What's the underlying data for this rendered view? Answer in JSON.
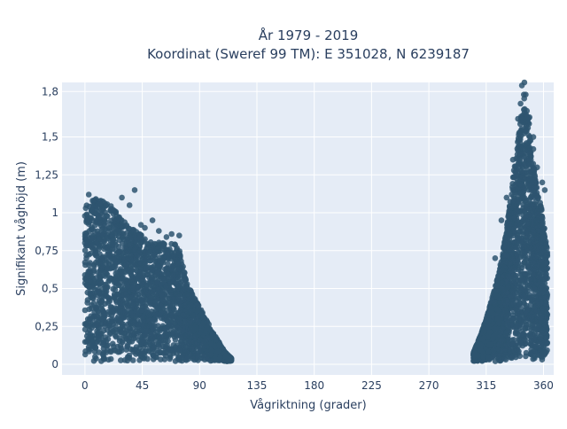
{
  "chart_data": {
    "type": "scatter",
    "title": "År 1979 - 2019",
    "subtitle": "Koordinat (Sweref 99 TM): E 351028, N 6239187",
    "xlabel": "Vågriktning (grader)",
    "ylabel": "Signifikant våghöjd (m)",
    "xlim": [
      -18,
      368
    ],
    "ylim": [
      -0.07,
      1.86
    ],
    "xticks": [
      0,
      45,
      90,
      135,
      180,
      225,
      270,
      315,
      360
    ],
    "xtick_labels": [
      "0",
      "45",
      "90",
      "135",
      "180",
      "225",
      "270",
      "315",
      "360"
    ],
    "yticks": [
      0,
      0.25,
      0.5,
      0.75,
      1,
      1.25,
      1.5,
      1.8
    ],
    "ytick_labels": [
      "0",
      "0,25",
      "0,5",
      "0,75",
      "1",
      "1,25",
      "1,5",
      "1,8"
    ],
    "grid": true,
    "marker_color": "#2e5570",
    "plot_bg": "#e5ecf6",
    "series": [
      {
        "clusters": [
          {
            "x_range": [
              0,
              115
            ],
            "envelope": [
              [
                0,
                1.05
              ],
              [
                10,
                1.1
              ],
              [
                20,
                1.05
              ],
              [
                30,
                0.95
              ],
              [
                40,
                0.88
              ],
              [
                50,
                0.82
              ],
              [
                60,
                0.8
              ],
              [
                70,
                0.8
              ],
              [
                75,
                0.75
              ],
              [
                80,
                0.55
              ],
              [
                85,
                0.45
              ],
              [
                90,
                0.38
              ],
              [
                95,
                0.3
              ],
              [
                100,
                0.22
              ],
              [
                105,
                0.15
              ],
              [
                110,
                0.08
              ],
              [
                115,
                0.04
              ]
            ],
            "outliers": [
              [
                39,
                1.15
              ],
              [
                29,
                1.1
              ],
              [
                6,
                1.08
              ],
              [
                17,
                0.98
              ],
              [
                35,
                1.05
              ],
              [
                47,
                0.9
              ],
              [
                53,
                0.95
              ],
              [
                22,
                1.02
              ],
              [
                3,
                1.12
              ],
              [
                12,
                1.06
              ],
              [
                44,
                0.92
              ],
              [
                58,
                0.88
              ],
              [
                68,
                0.86
              ],
              [
                74,
                0.85
              ],
              [
                64,
                0.84
              ]
            ]
          },
          {
            "x_range": [
              305,
              363
            ],
            "envelope": [
              [
                305,
                0.08
              ],
              [
                310,
                0.18
              ],
              [
                315,
                0.3
              ],
              [
                320,
                0.45
              ],
              [
                325,
                0.6
              ],
              [
                330,
                0.85
              ],
              [
                335,
                1.15
              ],
              [
                340,
                1.55
              ],
              [
                344,
                1.8
              ],
              [
                348,
                1.65
              ],
              [
                352,
                1.35
              ],
              [
                355,
                1.15
              ],
              [
                358,
                1.05
              ],
              [
                360,
                0.95
              ],
              [
                363,
                0.75
              ]
            ],
            "outliers": [
              [
                345,
                1.86
              ],
              [
                343,
                1.84
              ],
              [
                346,
                1.78
              ],
              [
                342,
                1.72
              ],
              [
                340,
                1.62
              ],
              [
                349,
                1.63
              ],
              [
                352,
                1.42
              ],
              [
                355,
                1.3
              ],
              [
                359,
                1.2
              ],
              [
                361,
                1.15
              ],
              [
                336,
                1.35
              ],
              [
                331,
                1.1
              ],
              [
                327,
                0.95
              ],
              [
                322,
                0.7
              ],
              [
                352,
                1.5
              ]
            ]
          }
        ]
      }
    ]
  }
}
